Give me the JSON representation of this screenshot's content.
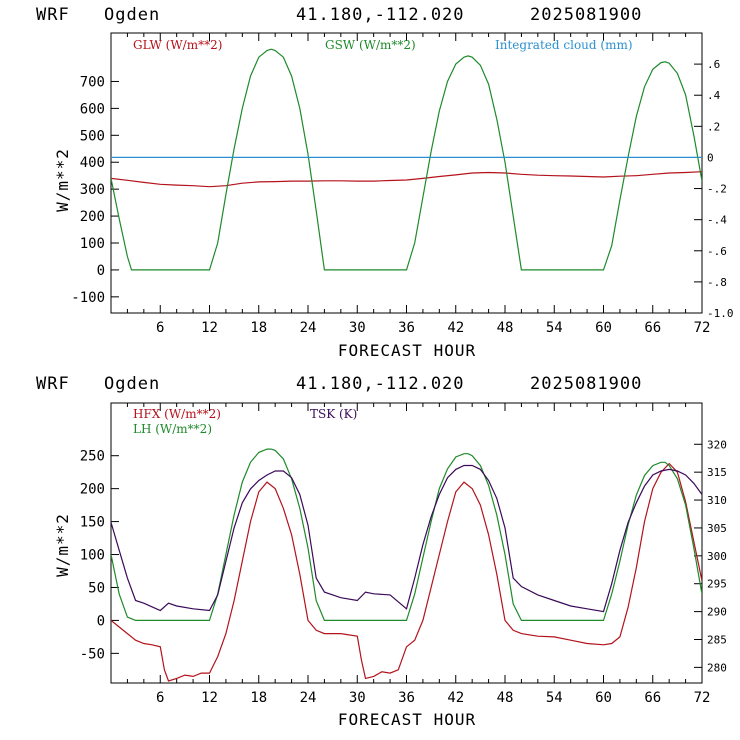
{
  "colors": {
    "red": "#b4121c",
    "green": "#1e8a2a",
    "blue": "#2b8fd0",
    "purple": "#3a0a5a",
    "axis": "#000000"
  },
  "chart_data": [
    {
      "type": "line",
      "header": {
        "model": "WRF",
        "site": "Ogden",
        "coords": "41.180,-112.020",
        "date": "2025081900"
      },
      "xlabel": "FORECAST HOUR",
      "ylabel": "W/m**2",
      "xlim": [
        0,
        72
      ],
      "ylim": [
        -160,
        880
      ],
      "x_ticks": [
        6,
        12,
        18,
        24,
        30,
        36,
        42,
        48,
        54,
        60,
        66,
        72
      ],
      "y_ticks": [
        -100,
        0,
        100,
        200,
        300,
        400,
        500,
        600,
        700
      ],
      "y2lim": [
        -1.0,
        0.8
      ],
      "y2_ticks": [
        ".6",
        ".4",
        ".2",
        "0",
        "-.2",
        "-.4",
        "-.6",
        "-.8",
        "-1.0"
      ],
      "y2_tick_values": [
        0.6,
        0.4,
        0.2,
        0,
        -0.2,
        -0.4,
        -0.6,
        -0.8,
        -1.0
      ],
      "legend": [
        {
          "label": "GLW (W/m**2)",
          "color": "#b4121c"
        },
        {
          "label": "GSW (W/m**2)",
          "color": "#1e8a2a"
        },
        {
          "label": "Integrated cloud (mm)",
          "color": "#2b8fd0"
        }
      ],
      "series": [
        {
          "name": "GLW (W/m**2)",
          "color": "#b4121c",
          "axis": "left",
          "x": [
            0,
            2,
            4,
            6,
            8,
            10,
            12,
            14,
            16,
            18,
            20,
            22,
            24,
            26,
            28,
            30,
            32,
            34,
            36,
            38,
            40,
            42,
            44,
            46,
            48,
            50,
            52,
            54,
            56,
            58,
            60,
            62,
            64,
            66,
            68,
            70,
            72
          ],
          "y": [
            340,
            333,
            325,
            318,
            315,
            313,
            309,
            313,
            322,
            327,
            328,
            330,
            330,
            331,
            331,
            330,
            330,
            332,
            334,
            340,
            347,
            353,
            360,
            362,
            360,
            355,
            352,
            350,
            349,
            347,
            345,
            348,
            350,
            355,
            360,
            362,
            365
          ]
        },
        {
          "name": "GSW (W/m**2)",
          "color": "#1e8a2a",
          "axis": "left",
          "x": [
            0,
            1,
            2,
            2.5,
            4,
            6,
            8,
            10,
            12,
            13,
            14,
            15,
            16,
            17,
            18,
            19,
            19.5,
            20,
            21,
            22,
            23,
            24,
            25,
            26,
            28,
            30,
            32,
            34,
            36,
            37,
            38,
            39,
            40,
            41,
            42,
            43,
            43.5,
            44,
            45,
            46,
            47,
            48,
            49,
            50,
            52,
            54,
            56,
            58,
            60,
            61,
            62,
            63,
            64,
            65,
            66,
            67,
            67.5,
            68,
            69,
            70,
            71,
            72
          ],
          "y": [
            340,
            190,
            50,
            0,
            0,
            0,
            0,
            0,
            0,
            100,
            280,
            450,
            600,
            720,
            790,
            815,
            820,
            815,
            790,
            720,
            600,
            430,
            220,
            0,
            0,
            0,
            0,
            0,
            0,
            100,
            270,
            440,
            590,
            700,
            765,
            790,
            795,
            790,
            760,
            690,
            560,
            400,
            200,
            0,
            0,
            0,
            0,
            0,
            0,
            90,
            260,
            420,
            570,
            680,
            745,
            770,
            773,
            768,
            730,
            650,
            500,
            330
          ]
        },
        {
          "name": "Integrated cloud (mm)",
          "color": "#2b8fd0",
          "axis": "right",
          "x": [
            0,
            72
          ],
          "y": [
            0,
            0
          ]
        }
      ]
    },
    {
      "type": "line",
      "header": {
        "model": "WRF",
        "site": "Ogden",
        "coords": "41.180,-112.020",
        "date": "2025081900"
      },
      "xlabel": "FORECAST HOUR",
      "ylabel": "W/m**2",
      "xlim": [
        0,
        72
      ],
      "ylim": [
        -95,
        330
      ],
      "x_ticks": [
        6,
        12,
        18,
        24,
        30,
        36,
        42,
        48,
        54,
        60,
        66,
        72
      ],
      "y_ticks": [
        -50,
        0,
        50,
        100,
        150,
        200,
        250
      ],
      "y2lim": [
        277.2,
        327.4
      ],
      "y2_ticks": [
        320,
        315,
        310,
        305,
        300,
        295,
        290,
        285,
        280
      ],
      "legend": [
        {
          "label": "HFX (W/m**2)",
          "color": "#b4121c"
        },
        {
          "label": "LH  (W/m**2)",
          "color": "#1e8a2a"
        },
        {
          "label": "TSK (K)",
          "color": "#3a0a5a"
        }
      ],
      "series": [
        {
          "name": "HFX (W/m**2)",
          "color": "#b4121c",
          "axis": "left",
          "x": [
            0,
            1,
            2,
            3,
            4,
            5,
            6,
            6.5,
            7,
            8,
            9,
            10,
            11,
            12,
            13,
            14,
            15,
            16,
            17,
            18,
            19,
            20,
            21,
            22,
            23,
            24,
            25,
            26,
            28,
            30,
            30.5,
            31,
            32,
            33,
            34,
            35,
            36,
            37,
            38,
            39,
            40,
            41,
            42,
            43,
            44,
            45,
            46,
            47,
            48,
            49,
            50,
            52,
            54,
            56,
            58,
            60,
            61,
            62,
            63,
            64,
            65,
            66,
            67,
            68,
            69,
            70,
            71,
            72
          ],
          "y": [
            0,
            -10,
            -20,
            -30,
            -35,
            -37,
            -40,
            -75,
            -92,
            -88,
            -83,
            -85,
            -80,
            -80,
            -55,
            -20,
            30,
            90,
            150,
            195,
            210,
            200,
            170,
            130,
            70,
            0,
            -15,
            -20,
            -20,
            -24,
            -60,
            -88,
            -85,
            -78,
            -80,
            -75,
            -40,
            -30,
            0,
            50,
            100,
            150,
            195,
            210,
            200,
            175,
            130,
            70,
            0,
            -15,
            -20,
            -24,
            -25,
            -30,
            -35,
            -37,
            -35,
            -25,
            20,
            80,
            150,
            200,
            225,
            238,
            225,
            180,
            120,
            60
          ]
        },
        {
          "name": "LH  (W/m**2)",
          "color": "#1e8a2a",
          "axis": "left",
          "x": [
            0,
            1,
            2,
            3,
            4,
            6,
            8,
            10,
            12,
            13,
            14,
            15,
            16,
            17,
            18,
            19,
            19.5,
            20,
            21,
            22,
            23,
            24,
            25,
            26,
            28,
            30,
            32,
            34,
            36,
            37,
            38,
            39,
            40,
            41,
            42,
            43,
            43.5,
            44,
            45,
            46,
            47,
            48,
            49,
            50,
            52,
            54,
            56,
            58,
            60,
            61,
            62,
            63,
            64,
            65,
            66,
            67,
            67.5,
            68,
            69,
            70,
            71,
            72
          ],
          "y": [
            100,
            40,
            5,
            0,
            0,
            0,
            0,
            0,
            0,
            40,
            100,
            160,
            210,
            240,
            255,
            260,
            260,
            258,
            245,
            215,
            170,
            110,
            30,
            0,
            0,
            0,
            0,
            0,
            0,
            40,
            95,
            150,
            200,
            230,
            248,
            253,
            253,
            250,
            235,
            205,
            160,
            100,
            25,
            0,
            0,
            0,
            0,
            0,
            0,
            40,
            90,
            145,
            190,
            220,
            235,
            240,
            240,
            235,
            215,
            175,
            110,
            40
          ]
        },
        {
          "name": "TSK (K)",
          "color": "#3a0a5a",
          "axis": "right",
          "x": [
            0,
            1,
            2,
            3,
            4,
            6,
            7,
            8,
            10,
            12,
            13,
            14,
            15,
            16,
            17,
            18,
            19,
            20,
            21,
            22,
            23,
            24,
            25,
            26,
            28,
            30,
            31,
            32,
            34,
            36,
            37,
            38,
            39,
            40,
            41,
            42,
            43,
            44,
            45,
            46,
            47,
            48,
            49,
            50,
            52,
            54,
            56,
            58,
            60,
            61,
            62,
            63,
            64,
            65,
            66,
            67,
            68,
            69,
            70,
            71,
            72
          ],
          "y": [
            306,
            301,
            296,
            292,
            291.5,
            290.2,
            291.5,
            291,
            290.5,
            290.2,
            293,
            299,
            305,
            309.5,
            312,
            313.5,
            314.5,
            315.2,
            315.2,
            314,
            311,
            305.5,
            296,
            293.5,
            292.5,
            292,
            293.5,
            293.2,
            293,
            290.5,
            296,
            302,
            307,
            311,
            314,
            315.5,
            316.2,
            316.2,
            315.5,
            313.5,
            310.3,
            305,
            296,
            294.5,
            293,
            292,
            291,
            290.5,
            290,
            295,
            301,
            306,
            309.5,
            312.5,
            314.5,
            315.2,
            315.5,
            315.2,
            314.5,
            313,
            311
          ]
        }
      ]
    }
  ]
}
